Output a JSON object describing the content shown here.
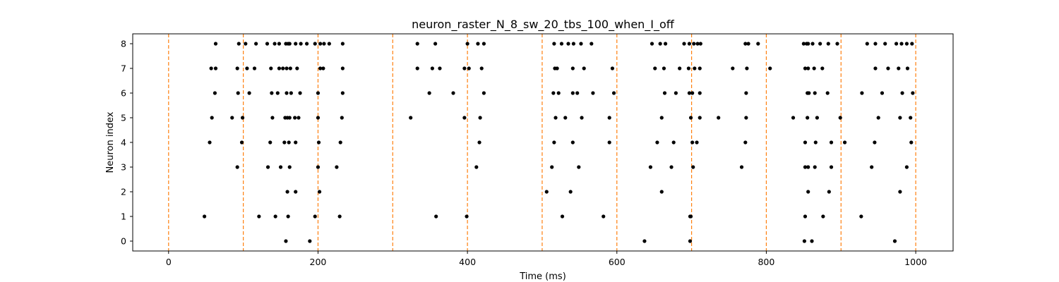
{
  "chart_data": {
    "type": "scatter",
    "title": "neuron_raster_N_8_sw_20_tbs_100_when_I_off",
    "xlabel": "Time (ms)",
    "ylabel": "Neuron index",
    "xlim": [
      -48,
      1050
    ],
    "ylim": [
      -0.4,
      8.4
    ],
    "xticks": [
      0,
      200,
      400,
      600,
      800,
      1000
    ],
    "yticks": [
      0,
      1,
      2,
      3,
      4,
      5,
      6,
      7,
      8
    ],
    "grid": false,
    "colors": {
      "spike": "#000000",
      "vline": "#ff7f0e"
    },
    "vlines": [
      0,
      100,
      200,
      300,
      400,
      500,
      600,
      700,
      800,
      900,
      1000
    ],
    "series": [
      {
        "neuron": 8,
        "x": [
          63,
          94,
          103,
          117,
          132,
          142,
          148,
          157,
          160,
          162,
          170,
          177,
          185,
          196,
          203,
          208,
          215,
          233,
          333,
          357,
          400,
          414,
          422,
          516,
          526,
          535,
          542,
          552,
          566,
          647,
          658,
          665,
          690,
          697,
          703,
          708,
          712,
          772,
          776,
          789,
          850,
          854,
          856,
          862,
          872,
          883,
          895,
          935,
          946,
          959,
          974,
          981,
          988,
          995
        ]
      },
      {
        "neuron": 7,
        "x": [
          57,
          63,
          92,
          105,
          115,
          137,
          148,
          153,
          158,
          163,
          172,
          203,
          207,
          233,
          333,
          353,
          363,
          396,
          402,
          419,
          517,
          520,
          541,
          556,
          594,
          651,
          663,
          684,
          696,
          704,
          711,
          755,
          774,
          805,
          852,
          856,
          864,
          875,
          946,
          963,
          977,
          989
        ]
      },
      {
        "neuron": 6,
        "x": [
          62,
          93,
          108,
          138,
          146,
          158,
          164,
          176,
          200,
          233,
          349,
          381,
          422,
          515,
          522,
          541,
          547,
          568,
          596,
          664,
          679,
          697,
          701,
          711,
          773,
          855,
          857,
          865,
          882,
          928,
          955,
          982,
          996
        ]
      },
      {
        "neuron": 5,
        "x": [
          58,
          85,
          99,
          139,
          156,
          159,
          162,
          169,
          174,
          200,
          232,
          324,
          396,
          417,
          518,
          531,
          553,
          590,
          660,
          699,
          711,
          736,
          773,
          836,
          855,
          868,
          899,
          950,
          979,
          993
        ]
      },
      {
        "neuron": 4,
        "x": [
          55,
          98,
          136,
          155,
          161,
          170,
          201,
          230,
          416,
          516,
          541,
          590,
          654,
          676,
          701,
          707,
          772,
          852,
          866,
          887,
          905,
          945,
          994
        ]
      },
      {
        "neuron": 3,
        "x": [
          92,
          133,
          150,
          162,
          200,
          225,
          412,
          513,
          549,
          645,
          673,
          702,
          767,
          852,
          856,
          865,
          887,
          941,
          988
        ]
      },
      {
        "neuron": 2,
        "x": [
          159,
          170,
          202,
          506,
          538,
          660,
          856,
          884,
          979
        ]
      },
      {
        "neuron": 1,
        "x": [
          48,
          121,
          143,
          160,
          196,
          229,
          358,
          399,
          527,
          582,
          698,
          699,
          852,
          876,
          927
        ]
      },
      {
        "neuron": 0,
        "x": [
          157,
          189,
          637,
          698,
          851,
          861,
          972
        ]
      }
    ]
  }
}
